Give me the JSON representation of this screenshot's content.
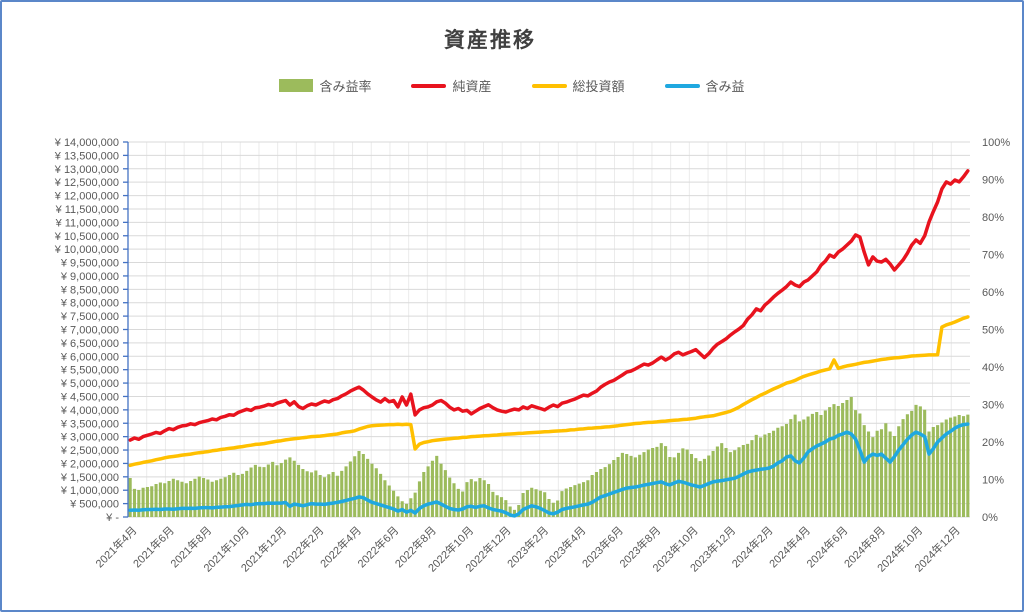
{
  "page": {
    "border_color": "#5b87c9",
    "background": "#ffffff"
  },
  "chart": {
    "title": "資産推移",
    "title_color": "#404040",
    "axis_color": "#4472c4",
    "grid_color": "#d9d9d9",
    "grid_color_vertical": "#ebebeb",
    "label_color": "#595959"
  },
  "chart_data": {
    "type": "combo",
    "title": "資産推移",
    "months": 45,
    "x_label_every_months": 2,
    "x_labels": [
      "2021年4月",
      "2021年6月",
      "2021年8月",
      "2021年10月",
      "2021年12月",
      "2022年2月",
      "2022年4月",
      "2022年6月",
      "2022年8月",
      "2022年10月",
      "2022年12月",
      "2023年2月",
      "2023年4月",
      "2023年6月",
      "2023年8月",
      "2023年10月",
      "2023年12月",
      "2024年2月",
      "2024年4月",
      "2024年6月",
      "2024年8月",
      "2024年10月",
      "2024年12月"
    ],
    "left_axis": {
      "unit": "JPY",
      "min": 0,
      "max": 14000000,
      "step": 500000,
      "prefix": "¥ ",
      "zero_label": "¥ -"
    },
    "right_axis": {
      "unit": "%",
      "min": 0,
      "max": 100,
      "step": 10
    },
    "grid": "on",
    "legend_position": "top",
    "series": [
      {
        "key": "gain-rate",
        "name": "含み益率",
        "type": "bar",
        "axis": "right",
        "unit": "%",
        "color": "#9cbb5c",
        "values": [
          10.4,
          7.5,
          7.2,
          7.8,
          8.0,
          8.2,
          8.8,
          9.2,
          9.0,
          9.6,
          10.2,
          9.8,
          9.4,
          9.0,
          9.6,
          10.2,
          10.8,
          10.4,
          10.0,
          9.4,
          9.8,
          10.2,
          10.6,
          11.2,
          11.8,
          11.2,
          11.5,
          12.3,
          13.2,
          13.9,
          13.4,
          13.3,
          14.0,
          14.7,
          13.8,
          14.4,
          15.3,
          15.9,
          15.0,
          13.9,
          12.8,
          12.2,
          11.9,
          12.4,
          11.2,
          10.6,
          11.4,
          12.0,
          11.0,
          12.3,
          13.5,
          14.8,
          16.2,
          17.6,
          16.8,
          15.5,
          14.2,
          13.0,
          11.5,
          9.8,
          8.4,
          7.0,
          5.5,
          4.2,
          3.5,
          5.0,
          6.5,
          9.5,
          12.0,
          13.5,
          15.0,
          16.3,
          14.2,
          12.5,
          10.5,
          9.0,
          7.5,
          6.8,
          9.3,
          10.1,
          9.5,
          10.4,
          9.8,
          8.8,
          6.7,
          5.8,
          5.3,
          4.5,
          2.8,
          1.9,
          3.2,
          6.4,
          7.2,
          7.8,
          7.4,
          7.0,
          6.6,
          4.8,
          3.8,
          4.4,
          6.9,
          7.6,
          8.0,
          8.5,
          8.9,
          9.3,
          9.8,
          11.2,
          12.0,
          12.8,
          13.3,
          14.1,
          15.2,
          16.0,
          17.1,
          16.8,
          16.3,
          15.9,
          16.6,
          17.3,
          18.0,
          18.4,
          18.7,
          19.7,
          18.9,
          16.0,
          15.9,
          17.1,
          18.3,
          18.0,
          16.8,
          15.7,
          14.9,
          15.5,
          16.4,
          17.6,
          18.8,
          19.7,
          18.4,
          17.3,
          17.8,
          18.6,
          19.2,
          19.5,
          20.5,
          21.9,
          21.2,
          22.0,
          22.4,
          23.0,
          23.8,
          24.2,
          24.8,
          26.1,
          27.3,
          25.5,
          26.0,
          26.8,
          27.5,
          28.0,
          27.2,
          28.4,
          29.3,
          30.1,
          29.6,
          30.4,
          31.2,
          32.0,
          28.5,
          27.6,
          24.5,
          22.8,
          21.3,
          23.0,
          23.4,
          25.0,
          22.8,
          21.6,
          24.2,
          26.1,
          27.4,
          28.3,
          29.9,
          29.5,
          28.6,
          22.8,
          24.0,
          24.5,
          25.2,
          26.0,
          26.5,
          26.8,
          27.2,
          26.9,
          27.3
        ]
      },
      {
        "key": "net-assets",
        "name": "純資産",
        "type": "line",
        "axis": "left",
        "unit": "million JPY",
        "color": "#e8131e",
        "values": [
          2.87,
          2.95,
          2.9,
          3.0,
          3.05,
          3.1,
          3.16,
          3.12,
          3.22,
          3.3,
          3.26,
          3.35,
          3.4,
          3.42,
          3.48,
          3.45,
          3.52,
          3.56,
          3.6,
          3.66,
          3.63,
          3.72,
          3.76,
          3.82,
          3.8,
          3.9,
          3.96,
          4.02,
          3.98,
          4.08,
          4.1,
          4.14,
          4.2,
          4.17,
          4.25,
          4.3,
          4.35,
          4.18,
          4.3,
          4.12,
          4.05,
          4.15,
          4.22,
          4.18,
          4.26,
          4.33,
          4.29,
          4.38,
          4.42,
          4.52,
          4.6,
          4.7,
          4.78,
          4.85,
          4.74,
          4.6,
          4.48,
          4.37,
          4.29,
          4.42,
          4.3,
          4.35,
          4.11,
          4.48,
          4.18,
          4.59,
          3.81,
          4.0,
          4.08,
          4.11,
          4.18,
          4.3,
          4.35,
          4.25,
          4.1,
          4.0,
          4.05,
          3.95,
          3.98,
          3.85,
          3.95,
          4.05,
          4.12,
          4.19,
          4.08,
          4.0,
          3.95,
          3.92,
          3.98,
          4.03,
          4.0,
          4.11,
          4.05,
          4.15,
          4.1,
          4.05,
          4.0,
          4.1,
          4.18,
          4.12,
          4.25,
          4.29,
          4.35,
          4.4,
          4.48,
          4.55,
          4.52,
          4.62,
          4.7,
          4.85,
          4.95,
          5.04,
          5.1,
          5.2,
          5.3,
          5.41,
          5.45,
          5.53,
          5.62,
          5.71,
          5.67,
          5.75,
          5.86,
          5.97,
          5.86,
          5.95,
          6.09,
          6.15,
          6.05,
          6.12,
          6.18,
          6.25,
          6.1,
          5.95,
          6.1,
          6.3,
          6.45,
          6.55,
          6.65,
          6.79,
          6.91,
          7.02,
          7.15,
          7.39,
          7.55,
          7.77,
          7.7,
          7.91,
          8.05,
          8.21,
          8.35,
          8.47,
          8.6,
          8.77,
          8.66,
          8.6,
          8.77,
          8.85,
          9.0,
          9.15,
          9.4,
          9.55,
          9.78,
          9.7,
          9.89,
          10.0,
          10.15,
          10.3,
          10.53,
          10.45,
          9.89,
          9.41,
          9.71,
          9.55,
          9.52,
          9.62,
          9.45,
          9.22,
          9.41,
          9.6,
          9.85,
          10.15,
          10.34,
          10.22,
          10.5,
          11.01,
          11.4,
          11.76,
          12.25,
          12.51,
          12.43,
          12.58,
          12.51,
          12.7,
          12.92
        ]
      },
      {
        "key": "total-invested",
        "name": "総投資額",
        "type": "line",
        "axis": "left",
        "unit": "million JPY",
        "color": "#ffc000",
        "values": [
          1.93,
          1.97,
          2.0,
          2.04,
          2.07,
          2.1,
          2.14,
          2.17,
          2.21,
          2.24,
          2.26,
          2.28,
          2.31,
          2.33,
          2.35,
          2.38,
          2.4,
          2.42,
          2.44,
          2.47,
          2.49,
          2.52,
          2.54,
          2.56,
          2.58,
          2.61,
          2.63,
          2.66,
          2.68,
          2.71,
          2.72,
          2.74,
          2.77,
          2.8,
          2.83,
          2.85,
          2.88,
          2.9,
          2.92,
          2.94,
          2.96,
          2.98,
          3.0,
          3.01,
          3.02,
          3.04,
          3.06,
          3.08,
          3.1,
          3.14,
          3.17,
          3.19,
          3.22,
          3.28,
          3.33,
          3.38,
          3.41,
          3.42,
          3.43,
          3.44,
          3.45,
          3.45,
          3.46,
          3.45,
          3.46,
          3.45,
          2.54,
          2.72,
          2.78,
          2.81,
          2.85,
          2.87,
          2.89,
          2.91,
          2.92,
          2.94,
          2.95,
          2.97,
          2.98,
          3.0,
          3.01,
          3.02,
          3.03,
          3.04,
          3.05,
          3.06,
          3.08,
          3.09,
          3.1,
          3.11,
          3.12,
          3.13,
          3.14,
          3.15,
          3.16,
          3.17,
          3.18,
          3.19,
          3.2,
          3.21,
          3.22,
          3.23,
          3.25,
          3.26,
          3.28,
          3.29,
          3.31,
          3.32,
          3.33,
          3.34,
          3.36,
          3.37,
          3.39,
          3.41,
          3.43,
          3.45,
          3.47,
          3.49,
          3.5,
          3.52,
          3.53,
          3.54,
          3.55,
          3.57,
          3.58,
          3.6,
          3.61,
          3.62,
          3.64,
          3.65,
          3.67,
          3.69,
          3.72,
          3.74,
          3.76,
          3.78,
          3.82,
          3.86,
          3.9,
          3.95,
          4.02,
          4.1,
          4.2,
          4.29,
          4.38,
          4.46,
          4.55,
          4.62,
          4.7,
          4.78,
          4.85,
          4.92,
          5.0,
          5.04,
          5.1,
          5.18,
          5.25,
          5.3,
          5.35,
          5.4,
          5.45,
          5.49,
          5.53,
          5.86,
          5.55,
          5.6,
          5.64,
          5.67,
          5.7,
          5.74,
          5.77,
          5.79,
          5.82,
          5.85,
          5.88,
          5.9,
          5.92,
          5.94,
          5.95,
          5.97,
          5.99,
          6.01,
          6.02,
          6.03,
          6.04,
          6.05,
          6.05,
          6.06,
          7.09,
          7.17,
          7.22,
          7.28,
          7.35,
          7.42,
          7.47
        ]
      },
      {
        "key": "unrealized-gain",
        "name": "含み益",
        "type": "line",
        "axis": "left",
        "unit": "million JPY",
        "color": "#1fa8e0",
        "values": [
          0.25,
          0.26,
          0.25,
          0.27,
          0.28,
          0.28,
          0.29,
          0.28,
          0.3,
          0.3,
          0.29,
          0.31,
          0.32,
          0.32,
          0.33,
          0.32,
          0.34,
          0.35,
          0.35,
          0.34,
          0.36,
          0.37,
          0.38,
          0.39,
          0.41,
          0.43,
          0.45,
          0.47,
          0.46,
          0.49,
          0.5,
          0.5,
          0.52,
          0.51,
          0.52,
          0.52,
          0.54,
          0.4,
          0.48,
          0.45,
          0.42,
          0.46,
          0.5,
          0.48,
          0.48,
          0.47,
          0.5,
          0.52,
          0.55,
          0.58,
          0.62,
          0.66,
          0.7,
          0.75,
          0.72,
          0.63,
          0.55,
          0.5,
          0.45,
          0.4,
          0.35,
          0.3,
          0.22,
          0.28,
          0.18,
          0.25,
          0.15,
          0.32,
          0.42,
          0.48,
          0.52,
          0.56,
          0.48,
          0.4,
          0.32,
          0.28,
          0.26,
          0.3,
          0.38,
          0.4,
          0.36,
          0.4,
          0.42,
          0.34,
          0.28,
          0.25,
          0.22,
          0.16,
          0.08,
          0.04,
          0.12,
          0.28,
          0.35,
          0.42,
          0.38,
          0.32,
          0.24,
          0.15,
          0.12,
          0.18,
          0.28,
          0.32,
          0.35,
          0.38,
          0.42,
          0.45,
          0.48,
          0.55,
          0.65,
          0.75,
          0.8,
          0.86,
          0.92,
          0.97,
          1.03,
          1.08,
          1.1,
          1.12,
          1.15,
          1.19,
          1.22,
          1.25,
          1.28,
          1.31,
          1.24,
          1.2,
          1.27,
          1.33,
          1.3,
          1.25,
          1.2,
          1.16,
          1.12,
          1.18,
          1.25,
          1.31,
          1.34,
          1.36,
          1.39,
          1.42,
          1.45,
          1.52,
          1.6,
          1.68,
          1.72,
          1.75,
          1.78,
          1.8,
          1.83,
          1.9,
          2.02,
          2.1,
          2.24,
          2.28,
          2.1,
          2.02,
          2.2,
          2.43,
          2.55,
          2.65,
          2.72,
          2.8,
          2.91,
          2.95,
          3.05,
          3.1,
          3.17,
          3.1,
          2.91,
          2.5,
          2.05,
          2.25,
          2.35,
          2.3,
          2.35,
          2.2,
          2.05,
          2.25,
          2.5,
          2.7,
          2.9,
          3.06,
          3.17,
          3.1,
          3.0,
          2.35,
          2.55,
          2.8,
          2.95,
          3.1,
          3.2,
          3.32,
          3.4,
          3.45,
          3.47
        ]
      }
    ]
  }
}
